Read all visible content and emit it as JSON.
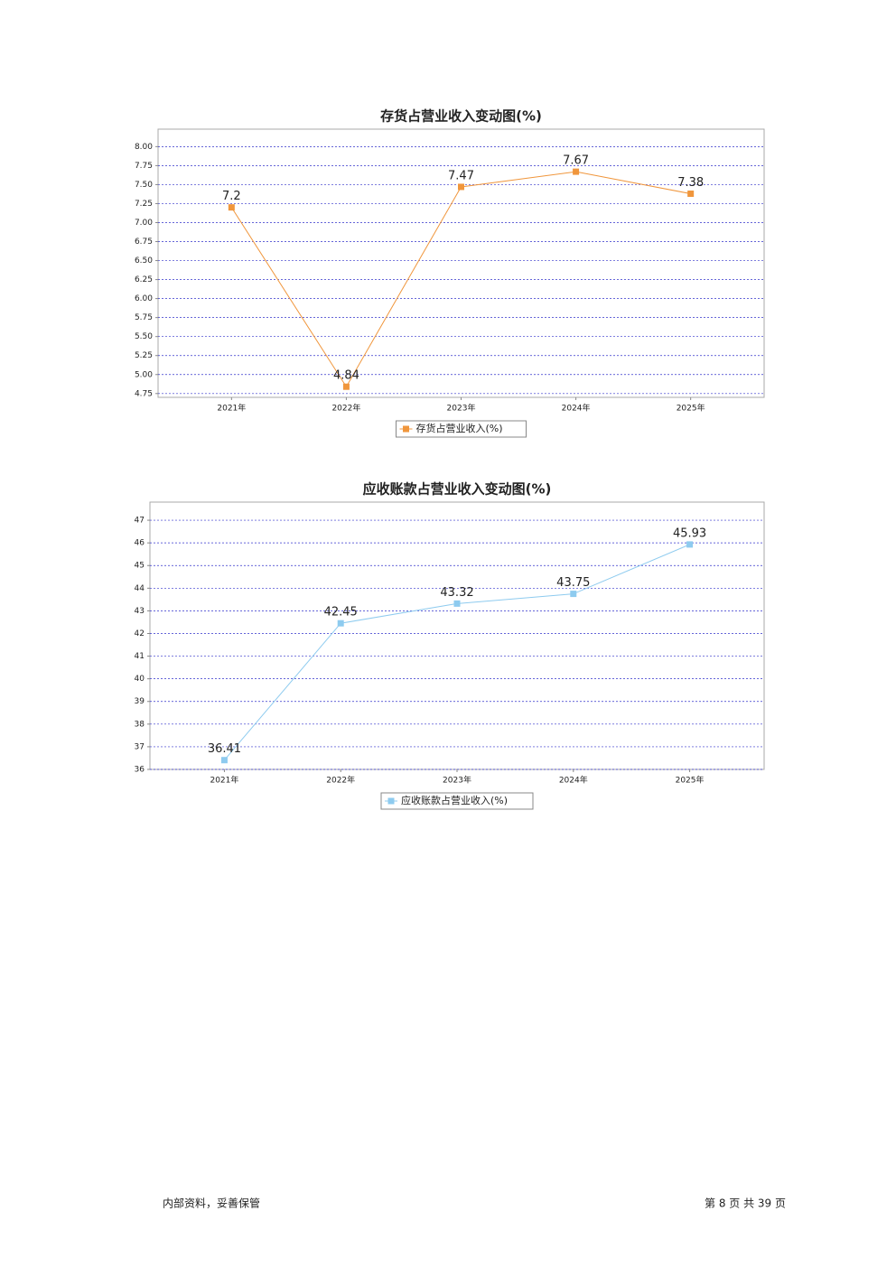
{
  "chart_data": [
    {
      "type": "line",
      "title": "存货占营业收入变动图(%)",
      "categories": [
        "2021年",
        "2022年",
        "2023年",
        "2024年",
        "2025年"
      ],
      "series": [
        {
          "name": "存货占营业收入(%)",
          "color": "#f0963c",
          "values": [
            7.2,
            4.84,
            7.47,
            7.67,
            7.38
          ]
        }
      ],
      "ylim": [
        4.7,
        8.23
      ],
      "yticks": [
        4.75,
        {
          "value": 5,
          "label": "5.00"
        },
        5.25,
        {
          "value": 5.5,
          "label": "5.50"
        },
        5.75,
        {
          "value": 6,
          "label": "6.00"
        },
        6.25,
        {
          "value": 6.5,
          "label": "6.50"
        },
        6.75,
        {
          "value": 7,
          "label": "7.00"
        },
        7.25,
        {
          "value": 7.5,
          "label": "7.50"
        },
        7.75,
        {
          "value": 8,
          "label": "8.00"
        }
      ],
      "grid": true,
      "legend": "bottom"
    },
    {
      "type": "line",
      "title": "应收账款占营业收入变动图(%)",
      "categories": [
        "2021年",
        "2022年",
        "2023年",
        "2024年",
        "2025年"
      ],
      "series": [
        {
          "name": "应收账款占营业收入(%)",
          "color": "#8ecbef",
          "values": [
            36.41,
            42.45,
            43.32,
            43.75,
            45.93
          ]
        }
      ],
      "ylim": [
        36,
        47.8
      ],
      "yticks": [
        36,
        37,
        38,
        39,
        40,
        41,
        42,
        43,
        44,
        45,
        46,
        47
      ],
      "grid": true,
      "legend": "bottom"
    }
  ],
  "footer": {
    "left": "内部资料，妥善保管",
    "right": "第 8 页  共 39 页"
  }
}
